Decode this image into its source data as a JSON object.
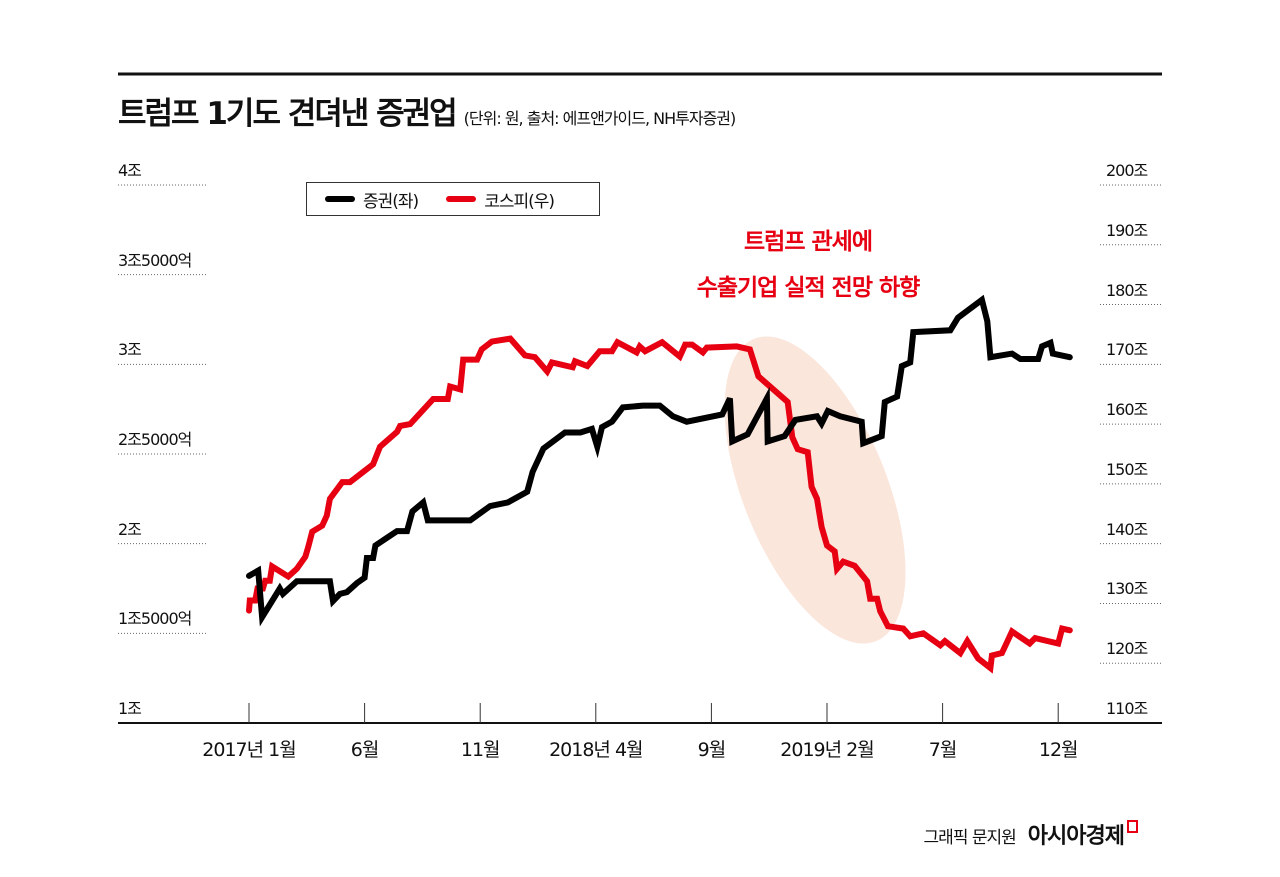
{
  "chart_data": {
    "type": "line",
    "title": "트럼프 1기도 견뎌낸 증권업",
    "subtitle": "(단위: 원, 출처: 에프앤가이드, NH투자증권)",
    "x_tick_labels": [
      "2017년 1월",
      "6월",
      "11월",
      "2018년 4월",
      "9월",
      "2019년 2월",
      "7월",
      "12월"
    ],
    "x_ticks": [
      "2017-01-01",
      "2017-06-01",
      "2017-11-01",
      "2018-04-01",
      "2018-09-01",
      "2019-02-01",
      "2019-07-01",
      "2019-12-01"
    ],
    "y_left": {
      "range": [
        1,
        4
      ],
      "unit": "조 원",
      "tick_values": [
        4,
        3.5,
        3,
        2.5,
        2,
        1.5,
        1
      ],
      "tick_labels": [
        "4조",
        "3조5000억",
        "3조",
        "2조5000억",
        "2조",
        "1조5000억",
        "1조"
      ]
    },
    "y_right": {
      "range": [
        110,
        200
      ],
      "unit": "조 원",
      "tick_values": [
        200,
        190,
        180,
        170,
        160,
        150,
        140,
        130,
        120,
        110
      ],
      "tick_labels": [
        "200조",
        "190조",
        "180조",
        "170조",
        "160조",
        "150조",
        "140조",
        "130조",
        "120조",
        "110조"
      ]
    },
    "grid": "dotted horizontal at left-axis ticks",
    "legend_placement": "top-left",
    "series": [
      {
        "name": "증권(좌)",
        "axis": "left",
        "color": "#000000",
        "points": [
          [
            "2017-01-01",
            1.82
          ],
          [
            "2017-01-13",
            1.85
          ],
          [
            "2017-01-18",
            1.59
          ],
          [
            "2017-02-11",
            1.75
          ],
          [
            "2017-02-15",
            1.72
          ],
          [
            "2017-03-03",
            1.79
          ],
          [
            "2017-04-16",
            1.79
          ],
          [
            "2017-04-20",
            1.68
          ],
          [
            "2017-04-29",
            1.72
          ],
          [
            "2017-05-08",
            1.73
          ],
          [
            "2017-05-21",
            1.78
          ],
          [
            "2017-06-01",
            1.81
          ],
          [
            "2017-06-04",
            1.92
          ],
          [
            "2017-06-12",
            1.92
          ],
          [
            "2017-06-15",
            1.99
          ],
          [
            "2017-07-13",
            2.07
          ],
          [
            "2017-07-26",
            2.07
          ],
          [
            "2017-08-03",
            2.18
          ],
          [
            "2017-08-17",
            2.23
          ],
          [
            "2017-08-23",
            2.13
          ],
          [
            "2017-10-18",
            2.13
          ],
          [
            "2017-11-14",
            2.21
          ],
          [
            "2017-12-07",
            2.23
          ],
          [
            "2018-01-02",
            2.29
          ],
          [
            "2018-01-09",
            2.4
          ],
          [
            "2018-01-23",
            2.53
          ],
          [
            "2018-02-21",
            2.62
          ],
          [
            "2018-03-11",
            2.62
          ],
          [
            "2018-03-26",
            2.64
          ],
          [
            "2018-04-03",
            2.54
          ],
          [
            "2018-04-09",
            2.65
          ],
          [
            "2018-04-22",
            2.68
          ],
          [
            "2018-05-06",
            2.76
          ],
          [
            "2018-06-02",
            2.77
          ],
          [
            "2018-06-24",
            2.77
          ],
          [
            "2018-07-11",
            2.71
          ],
          [
            "2018-07-29",
            2.68
          ],
          [
            "2018-09-15",
            2.72
          ],
          [
            "2018-09-25",
            2.81
          ],
          [
            "2018-09-28",
            2.57
          ],
          [
            "2018-10-18",
            2.61
          ],
          [
            "2018-11-13",
            2.81
          ],
          [
            "2018-11-14",
            2.57
          ],
          [
            "2018-12-06",
            2.6
          ],
          [
            "2018-12-20",
            2.69
          ],
          [
            "2019-01-18",
            2.71
          ],
          [
            "2019-01-24",
            2.67
          ],
          [
            "2019-02-02",
            2.74
          ],
          [
            "2019-02-18",
            2.71
          ],
          [
            "2019-03-16",
            2.68
          ],
          [
            "2019-03-18",
            2.56
          ],
          [
            "2019-04-12",
            2.6
          ],
          [
            "2019-04-16",
            2.79
          ],
          [
            "2019-05-02",
            2.82
          ],
          [
            "2019-05-08",
            2.99
          ],
          [
            "2019-05-19",
            3.01
          ],
          [
            "2019-05-23",
            3.18
          ],
          [
            "2019-07-11",
            3.19
          ],
          [
            "2019-07-21",
            3.26
          ],
          [
            "2019-08-22",
            3.36
          ],
          [
            "2019-08-29",
            3.24
          ],
          [
            "2019-09-03",
            3.04
          ],
          [
            "2019-10-01",
            3.06
          ],
          [
            "2019-10-12",
            3.03
          ],
          [
            "2019-11-05",
            3.03
          ],
          [
            "2019-11-10",
            3.1
          ],
          [
            "2019-11-21",
            3.12
          ],
          [
            "2019-11-24",
            3.06
          ],
          [
            "2019-12-16",
            3.04
          ]
        ]
      },
      {
        "name": "코스피(우)",
        "axis": "right",
        "color": "#e60012",
        "points": [
          [
            "2017-01-01",
            128.8
          ],
          [
            "2017-01-02",
            130.5
          ],
          [
            "2017-01-09",
            130.5
          ],
          [
            "2017-01-12",
            132.5
          ],
          [
            "2017-01-19",
            132.5
          ],
          [
            "2017-01-22",
            133.8
          ],
          [
            "2017-01-28",
            133.8
          ],
          [
            "2017-01-31",
            136.2
          ],
          [
            "2017-02-22",
            134.5
          ],
          [
            "2017-03-03",
            135.8
          ],
          [
            "2017-03-14",
            137.8
          ],
          [
            "2017-03-18",
            139.5
          ],
          [
            "2017-03-23",
            142.0
          ],
          [
            "2017-04-06",
            143.0
          ],
          [
            "2017-04-12",
            144.7
          ],
          [
            "2017-04-16",
            147.5
          ],
          [
            "2017-05-02",
            150.3
          ],
          [
            "2017-05-12",
            150.3
          ],
          [
            "2017-06-12",
            153.3
          ],
          [
            "2017-06-21",
            156.2
          ],
          [
            "2017-07-13",
            158.7
          ],
          [
            "2017-07-17",
            159.7
          ],
          [
            "2017-07-30",
            160.0
          ],
          [
            "2017-08-30",
            164.2
          ],
          [
            "2017-09-19",
            164.2
          ],
          [
            "2017-09-22",
            166.3
          ],
          [
            "2017-10-05",
            165.8
          ],
          [
            "2017-10-09",
            170.8
          ],
          [
            "2017-10-27",
            170.8
          ],
          [
            "2017-11-03",
            172.5
          ],
          [
            "2017-11-16",
            173.8
          ],
          [
            "2017-12-10",
            174.3
          ],
          [
            "2017-12-29",
            171.5
          ],
          [
            "2018-01-12",
            171.2
          ],
          [
            "2018-01-28",
            168.8
          ],
          [
            "2018-02-04",
            170.3
          ],
          [
            "2018-03-01",
            169.5
          ],
          [
            "2018-03-04",
            170.5
          ],
          [
            "2018-03-20",
            169.7
          ],
          [
            "2018-04-06",
            172.2
          ],
          [
            "2018-04-22",
            172.2
          ],
          [
            "2018-04-29",
            173.7
          ],
          [
            "2018-05-24",
            172.0
          ],
          [
            "2018-05-28",
            173.0
          ],
          [
            "2018-06-05",
            172.2
          ],
          [
            "2018-06-27",
            173.7
          ],
          [
            "2018-07-20",
            171.3
          ],
          [
            "2018-07-27",
            173.3
          ],
          [
            "2018-08-06",
            173.3
          ],
          [
            "2018-08-20",
            172.0
          ],
          [
            "2018-08-25",
            172.8
          ],
          [
            "2018-10-04",
            173.0
          ],
          [
            "2018-10-21",
            172.5
          ],
          [
            "2018-11-02",
            168.0
          ],
          [
            "2018-12-10",
            163.7
          ],
          [
            "2018-12-16",
            157.8
          ],
          [
            "2018-12-23",
            155.8
          ],
          [
            "2019-01-06",
            155.3
          ],
          [
            "2019-01-11",
            149.5
          ],
          [
            "2019-01-18",
            147.5
          ],
          [
            "2019-01-24",
            142.8
          ],
          [
            "2019-02-01",
            139.7
          ],
          [
            "2019-02-11",
            138.7
          ],
          [
            "2019-02-14",
            135.8
          ],
          [
            "2019-02-22",
            137.0
          ],
          [
            "2019-03-07",
            136.3
          ],
          [
            "2019-03-23",
            133.7
          ],
          [
            "2019-03-27",
            130.8
          ],
          [
            "2019-04-06",
            130.8
          ],
          [
            "2019-04-10",
            128.7
          ],
          [
            "2019-04-20",
            126.2
          ],
          [
            "2019-05-10",
            125.8
          ],
          [
            "2019-05-19",
            124.5
          ],
          [
            "2019-06-06",
            125.0
          ],
          [
            "2019-06-28",
            123.0
          ],
          [
            "2019-07-04",
            123.7
          ],
          [
            "2019-07-24",
            121.7
          ],
          [
            "2019-08-03",
            123.7
          ],
          [
            "2019-08-17",
            120.8
          ],
          [
            "2019-09-03",
            119.2
          ],
          [
            "2019-09-05",
            121.3
          ],
          [
            "2019-09-18",
            121.7
          ],
          [
            "2019-10-01",
            125.3
          ],
          [
            "2019-10-24",
            123.3
          ],
          [
            "2019-11-01",
            124.2
          ],
          [
            "2019-12-01",
            123.3
          ],
          [
            "2019-12-06",
            125.8
          ],
          [
            "2019-12-16",
            125.5
          ]
        ]
      }
    ],
    "annotation": {
      "lines": [
        "트럼프 관세에",
        "수출기업 실적 전망 하향"
      ],
      "color": "#e60012",
      "highlight_color": "#fbe6dc",
      "highlight_period": [
        "2018-10-01",
        "2019-04-30"
      ]
    }
  },
  "legend": {
    "items": [
      {
        "label": "증권(좌)",
        "color": "#000000"
      },
      {
        "label": "코스피(우)",
        "color": "#e60012"
      }
    ]
  },
  "credit": {
    "text": "그래픽 문지원",
    "logo": "아시아경제"
  }
}
